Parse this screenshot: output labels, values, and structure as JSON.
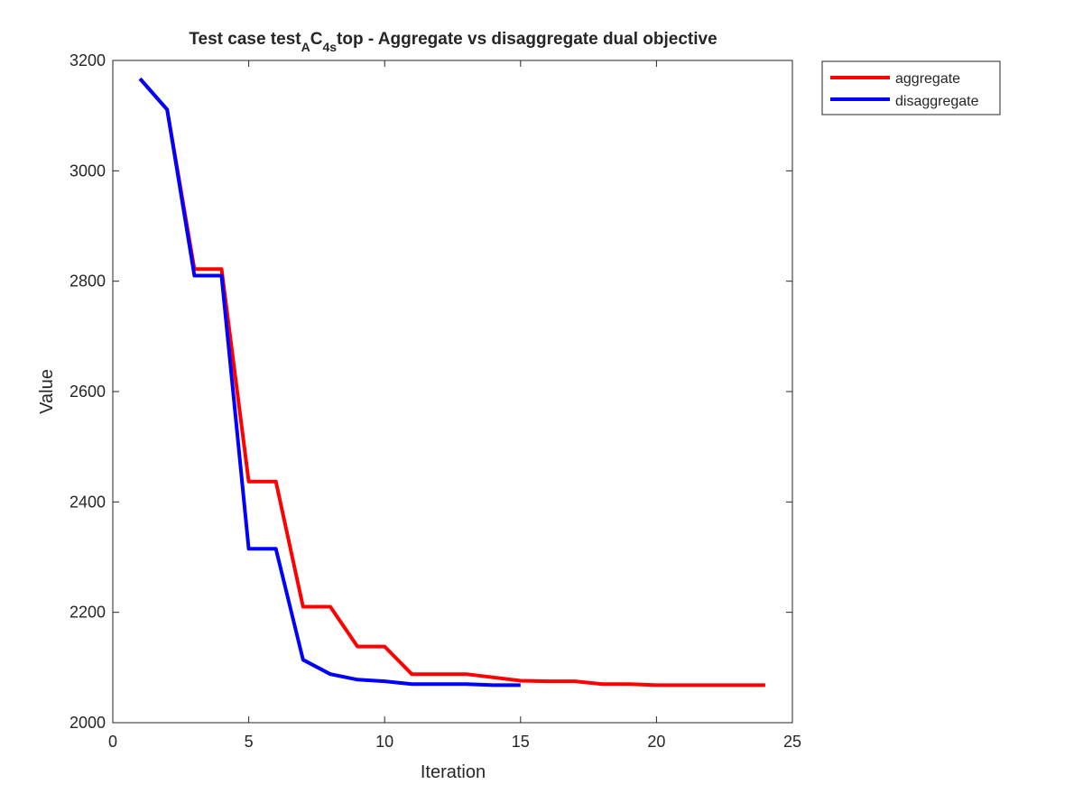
{
  "chart_data": {
    "type": "line",
    "title": {
      "pre": "Test case test",
      "sub1": "A",
      "mid": "C",
      "sub2": "4s",
      "post": "top - Aggregate vs disaggregate dual objective"
    },
    "xlabel": "Iteration",
    "ylabel": "Value",
    "xlim": [
      0,
      25
    ],
    "ylim": [
      2000,
      3200
    ],
    "xticks": [
      0,
      5,
      10,
      15,
      20,
      25
    ],
    "yticks": [
      2000,
      2200,
      2400,
      2600,
      2800,
      3000,
      3200
    ],
    "grid": false,
    "legend_position": "outside-top-right",
    "series": [
      {
        "name": "aggregate",
        "color": "#ff0000",
        "x": [
          1,
          2,
          3,
          4,
          5,
          6,
          7,
          8,
          9,
          10,
          11,
          12,
          13,
          14,
          15,
          16,
          17,
          18,
          19,
          20,
          21,
          22,
          23,
          24
        ],
        "y": [
          3167,
          3111,
          2822,
          2822,
          2437,
          2437,
          2210,
          2210,
          2138,
          2138,
          2088,
          2088,
          2088,
          2082,
          2076,
          2075,
          2075,
          2070,
          2070,
          2068,
          2068,
          2068,
          2068,
          2068
        ]
      },
      {
        "name": "disaggregate",
        "color": "#0000ff",
        "x": [
          1,
          2,
          3,
          4,
          5,
          6,
          7,
          8,
          9,
          10,
          11,
          12,
          13,
          14,
          15
        ],
        "y": [
          3167,
          3111,
          2810,
          2810,
          2315,
          2315,
          2114,
          2088,
          2078,
          2075,
          2070,
          2070,
          2070,
          2068,
          2068
        ]
      }
    ]
  }
}
